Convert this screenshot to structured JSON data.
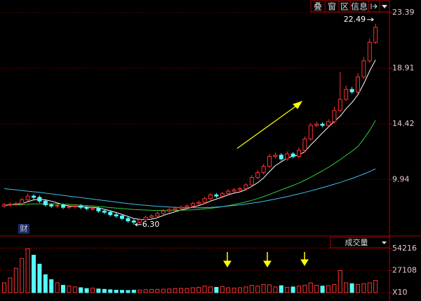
{
  "toolbar": [
    "叠",
    "窗",
    "区",
    "信息"
  ],
  "badge": "财",
  "indicator_label": "成交量",
  "chart_data": [
    {
      "type": "candlestick",
      "up_color": "#ff3232",
      "down_color": "#54fcfc",
      "open": [
        7.8,
        7.9,
        7.95,
        8.0,
        8.3,
        8.6,
        8.5,
        8.2,
        7.9,
        7.8,
        7.85,
        7.7,
        7.75,
        7.8,
        7.7,
        7.6,
        7.6,
        7.4,
        7.3,
        7.1,
        7.0,
        6.8,
        6.6,
        6.5,
        6.7,
        6.9,
        7.0,
        7.2,
        7.4,
        7.5,
        7.6,
        7.7,
        7.8,
        8.0,
        8.1,
        8.4,
        8.7,
        8.6,
        8.8,
        9.0,
        9.1,
        9.2,
        9.5,
        10.1,
        10.5,
        11.0,
        11.8,
        11.9,
        11.6,
        12.0,
        11.8,
        12.3,
        13.2,
        14.3,
        14.4,
        14.3,
        14.6,
        15.5,
        16.4,
        17.2,
        17.0,
        18.2,
        19.5,
        21.0
      ],
      "high": [
        8.05,
        8.1,
        8.15,
        8.45,
        8.8,
        8.75,
        8.65,
        8.35,
        8.05,
        8.0,
        8.0,
        7.9,
        7.95,
        7.95,
        7.85,
        7.75,
        7.75,
        7.55,
        7.45,
        7.25,
        7.15,
        6.95,
        6.75,
        6.85,
        7.05,
        7.15,
        7.35,
        7.55,
        7.65,
        7.75,
        7.85,
        7.95,
        8.15,
        8.25,
        8.55,
        8.85,
        8.85,
        8.95,
        9.15,
        9.25,
        9.35,
        9.65,
        10.3,
        10.7,
        11.2,
        12.0,
        12.1,
        12.05,
        12.2,
        12.15,
        12.5,
        13.4,
        14.5,
        14.6,
        14.55,
        14.8,
        15.8,
        18.6,
        17.5,
        17.4,
        18.5,
        19.8,
        21.3,
        22.49
      ],
      "low": [
        7.65,
        7.75,
        7.8,
        7.85,
        8.15,
        8.35,
        8.05,
        7.75,
        7.65,
        7.65,
        7.55,
        7.55,
        7.6,
        7.55,
        7.45,
        7.45,
        7.25,
        7.15,
        6.95,
        6.85,
        6.65,
        6.45,
        6.3,
        6.35,
        6.55,
        6.75,
        6.85,
        7.05,
        7.25,
        7.35,
        7.45,
        7.55,
        7.65,
        7.85,
        7.95,
        8.25,
        8.45,
        8.45,
        8.65,
        8.85,
        8.95,
        9.05,
        9.35,
        9.95,
        10.35,
        10.85,
        11.65,
        11.45,
        11.45,
        11.65,
        11.65,
        12.15,
        13.05,
        14.15,
        14.15,
        14.15,
        14.45,
        15.35,
        16.25,
        16.85,
        16.85,
        18.05,
        19.35,
        20.85
      ],
      "close": [
        7.9,
        7.95,
        8.0,
        8.3,
        8.6,
        8.5,
        8.2,
        7.9,
        7.8,
        7.85,
        7.7,
        7.75,
        7.8,
        7.7,
        7.6,
        7.6,
        7.4,
        7.3,
        7.1,
        7.0,
        6.8,
        6.6,
        6.5,
        6.7,
        6.9,
        7.0,
        7.2,
        7.4,
        7.5,
        7.6,
        7.7,
        7.8,
        8.0,
        8.1,
        8.4,
        8.7,
        8.6,
        8.8,
        9.0,
        9.1,
        9.2,
        9.5,
        10.1,
        10.5,
        11.0,
        11.8,
        11.9,
        11.6,
        12.0,
        11.8,
        12.3,
        13.2,
        14.3,
        14.4,
        14.3,
        14.6,
        15.5,
        16.4,
        17.2,
        17.0,
        18.2,
        19.5,
        21.0,
        22.2
      ],
      "series": [
        {
          "color": "#ffffff",
          "values": [
            7.85,
            7.9,
            7.95,
            8.0,
            8.15,
            8.3,
            8.35,
            8.3,
            8.2,
            8.05,
            7.9,
            7.8,
            7.78,
            7.76,
            7.71,
            7.69,
            7.65,
            7.54,
            7.42,
            7.28,
            7.12,
            6.96,
            6.8,
            6.72,
            6.7,
            6.74,
            6.86,
            7.04,
            7.2,
            7.34,
            7.48,
            7.6,
            7.72,
            7.84,
            8.0,
            8.2,
            8.36,
            8.52,
            8.7,
            8.84,
            8.94,
            9.12,
            9.38,
            9.68,
            10.06,
            10.58,
            11.06,
            11.36,
            11.66,
            11.82,
            11.92,
            12.18,
            12.72,
            13.2,
            13.7,
            14.16,
            14.62,
            15.04,
            15.64,
            16.14,
            16.76,
            17.66,
            18.68,
            19.58
          ]
        },
        {
          "color": "#33cc33",
          "values": [
            7.9,
            7.9,
            7.9,
            7.92,
            7.95,
            7.97,
            7.98,
            7.98,
            7.97,
            7.96,
            7.95,
            7.93,
            7.9,
            7.87,
            7.83,
            7.8,
            7.76,
            7.72,
            7.68,
            7.64,
            7.6,
            7.56,
            7.52,
            7.5,
            7.48,
            7.46,
            7.45,
            7.44,
            7.44,
            7.45,
            7.46,
            7.48,
            7.5,
            7.53,
            7.57,
            7.62,
            7.68,
            7.75,
            7.83,
            7.92,
            8.02,
            8.13,
            8.26,
            8.4,
            8.56,
            8.74,
            8.92,
            9.1,
            9.28,
            9.46,
            9.66,
            9.88,
            10.12,
            10.38,
            10.64,
            10.92,
            11.22,
            11.54,
            11.88,
            12.22,
            12.6,
            13.2,
            13.9,
            14.7
          ]
        },
        {
          "color": "#40c0e8",
          "values": [
            9.2,
            9.15,
            9.1,
            9.05,
            9.0,
            8.95,
            8.9,
            8.84,
            8.78,
            8.72,
            8.66,
            8.6,
            8.54,
            8.48,
            8.42,
            8.36,
            8.3,
            8.24,
            8.18,
            8.12,
            8.06,
            8.0,
            7.95,
            7.9,
            7.86,
            7.82,
            7.78,
            7.75,
            7.72,
            7.7,
            7.68,
            7.67,
            7.66,
            7.66,
            7.67,
            7.69,
            7.72,
            7.76,
            7.8,
            7.85,
            7.9,
            7.96,
            8.03,
            8.1,
            8.18,
            8.27,
            8.36,
            8.46,
            8.56,
            8.67,
            8.78,
            8.9,
            9.02,
            9.15,
            9.28,
            9.42,
            9.56,
            9.7,
            9.86,
            10.02,
            10.2,
            10.38,
            10.58,
            10.8
          ]
        }
      ],
      "annotations": [
        "22.49",
        "6.30"
      ],
      "ylim": [
        5.45,
        23.39
      ],
      "yticks": [
        23.39,
        18.91,
        14.42,
        9.94
      ],
      "grid": true
    },
    {
      "type": "bar",
      "values": [
        12000,
        18000,
        30000,
        42000,
        54000,
        46000,
        35000,
        22000,
        16000,
        12000,
        9000,
        8000,
        7000,
        6000,
        5000,
        5500,
        4500,
        4000,
        3500,
        3000,
        2800,
        2600,
        3000,
        3200,
        3500,
        3800,
        4000,
        4200,
        4500,
        5000,
        5200,
        5000,
        6000,
        6500,
        8000,
        7000,
        6500,
        7500,
        6000,
        5500,
        6000,
        7000,
        9000,
        8000,
        10000,
        9500,
        7000,
        8500,
        6500,
        7000,
        8000,
        9000,
        12000,
        9000,
        8000,
        8500,
        10000,
        27000,
        12000,
        11000,
        10000,
        11000,
        12000,
        15000
      ],
      "ylim": [
        0,
        54216
      ],
      "yticks": [
        54216,
        27108,
        {
          "value": 0,
          "label": "X10"
        }
      ],
      "grid": true
    }
  ]
}
